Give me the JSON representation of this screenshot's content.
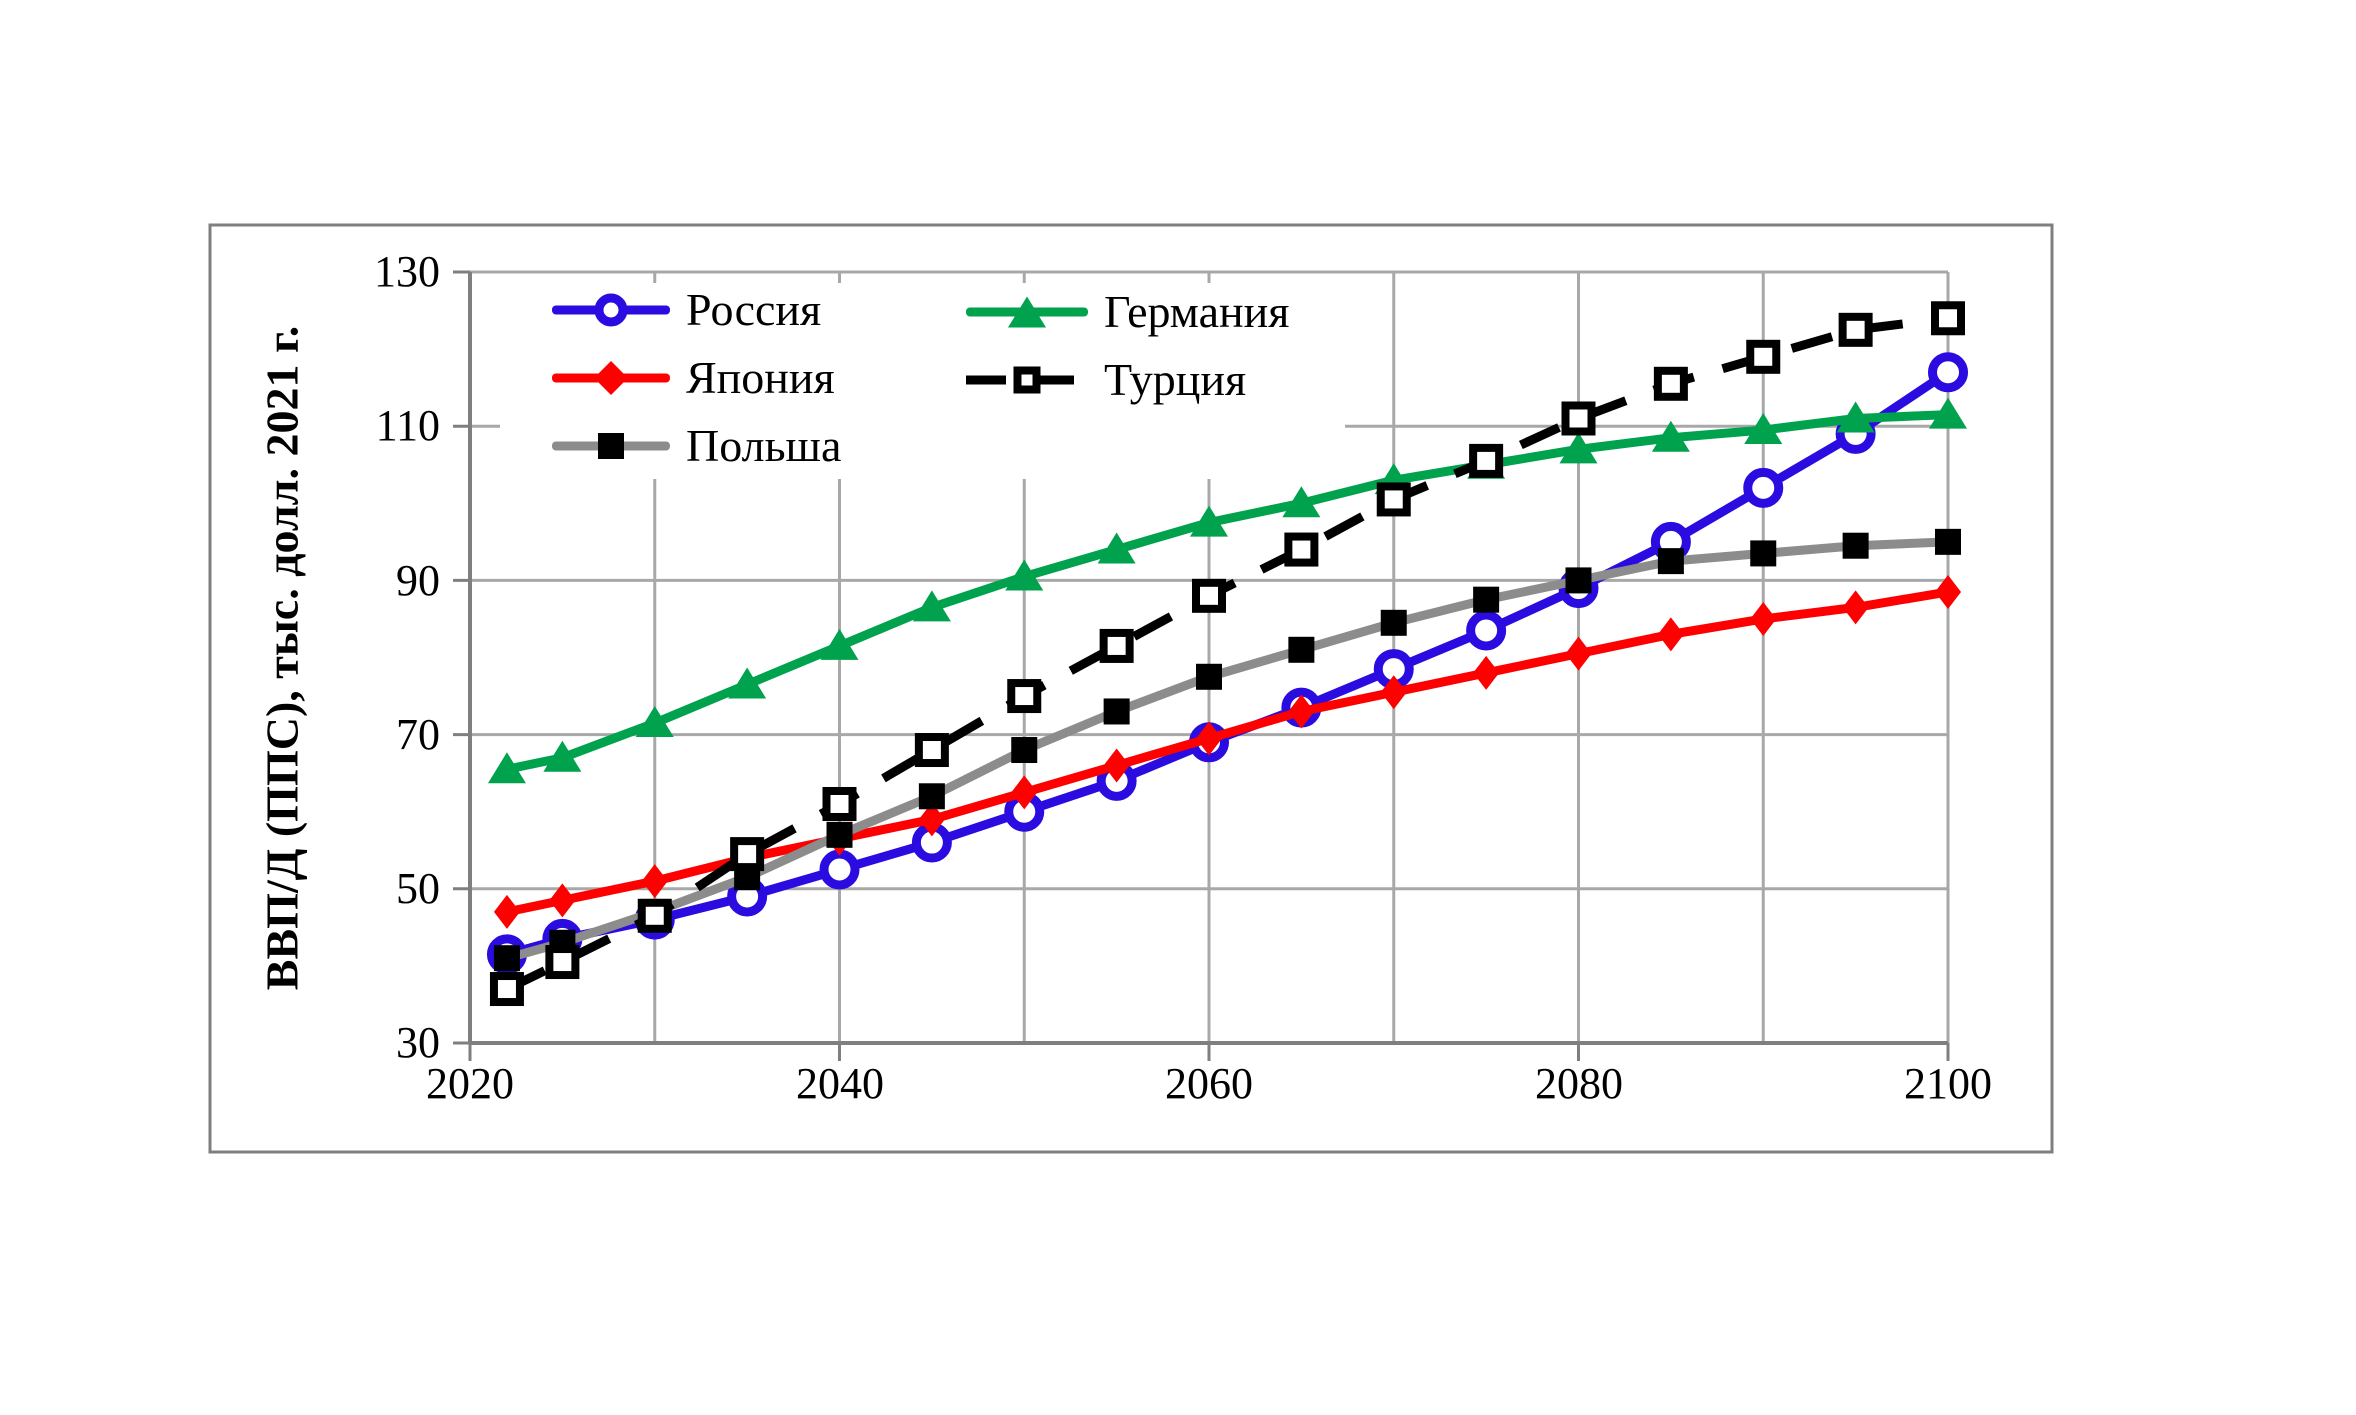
{
  "figure": {
    "background": "#ffffff",
    "outer_border_color": "#7f7f7f",
    "grid_color": "#a8a8a8",
    "axis_color": "#7f7f7f"
  },
  "y_axis": {
    "title": "ВВП/Д (ППС), тыс. долл. 2021 г.",
    "tick_labels": [
      130,
      110,
      90,
      70,
      50,
      30
    ]
  },
  "x_axis": {
    "tick_labels": [
      2020,
      2040,
      2060,
      2080,
      2100
    ]
  },
  "legend": {
    "items": [
      {
        "id": "russia",
        "label": "Россия"
      },
      {
        "id": "japan",
        "label": "Япония"
      },
      {
        "id": "poland",
        "label": "Польша"
      },
      {
        "id": "germany",
        "label": "Германия"
      },
      {
        "id": "turkey",
        "label": "Турция"
      }
    ]
  },
  "chart_data": {
    "type": "line",
    "title": "",
    "xlabel": "",
    "ylabel": "ВВП/Д (ППС), тыс. долл. 2021 г.",
    "xlim": [
      2020,
      2100
    ],
    "ylim": [
      30,
      130
    ],
    "x_major_ticks": [
      2020,
      2040,
      2060,
      2080,
      2100
    ],
    "x_minor_grid_years": [
      2030,
      2040,
      2050,
      2060,
      2070,
      2080,
      2090
    ],
    "y_ticks": [
      30,
      50,
      70,
      90,
      110,
      130
    ],
    "grid": true,
    "legend_position": "top-left, two columns",
    "x": [
      2022,
      2025,
      2030,
      2035,
      2040,
      2045,
      2050,
      2055,
      2060,
      2065,
      2070,
      2075,
      2080,
      2085,
      2090,
      2095,
      2100
    ],
    "series": [
      {
        "id": "russia",
        "name": "Россия",
        "color": "#2a0be0",
        "marker": "open-circle",
        "line": "solid",
        "values": [
          41.5,
          43.5,
          46,
          49,
          52.5,
          56,
          60,
          64,
          69,
          73.5,
          78.5,
          83.5,
          89,
          95,
          102,
          109,
          117
        ]
      },
      {
        "id": "japan",
        "name": "Япония",
        "color": "#fe0000",
        "marker": "filled-diamond",
        "line": "solid",
        "values": [
          47,
          48.5,
          51,
          54,
          56.5,
          59,
          62.5,
          66,
          69.5,
          73,
          75.5,
          78,
          80.5,
          83,
          85,
          86.5,
          88.5
        ]
      },
      {
        "id": "poland",
        "name": "Польша",
        "color": "#8c8c8c",
        "marker": "filled-square",
        "marker_color": "#000000",
        "line": "solid",
        "values": [
          41,
          43,
          47,
          51.5,
          57,
          62,
          68,
          73,
          77.5,
          81,
          84.5,
          87.5,
          90,
          92.5,
          93.5,
          94.5,
          95
        ]
      },
      {
        "id": "germany",
        "name": "Германия",
        "color": "#00a24e",
        "marker": "filled-triangle",
        "line": "solid",
        "values": [
          65.5,
          67,
          71.5,
          76.5,
          81.5,
          86.5,
          90.5,
          94,
          97.5,
          100,
          103,
          105,
          107,
          108.5,
          109.5,
          111,
          111.5
        ]
      },
      {
        "id": "turkey",
        "name": "Турция",
        "color": "#000000",
        "marker": "open-square",
        "line": "dashed",
        "values": [
          37,
          40.5,
          46.5,
          54.5,
          61,
          68,
          75,
          81.5,
          88,
          94,
          100.5,
          105.5,
          111,
          115.5,
          119,
          122.5,
          124
        ]
      }
    ]
  }
}
